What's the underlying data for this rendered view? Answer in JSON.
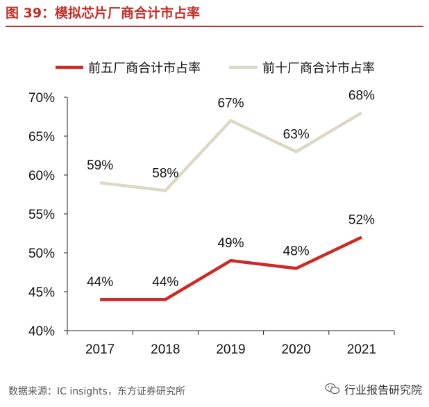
{
  "title": "图 39：模拟芯片厂商合计市占率",
  "source": "数据来源：IC insights，东方证券研究所",
  "watermark": "行业报告研究院",
  "watermark_icon": "wechat-icon",
  "colors": {
    "title": "#c0302b",
    "series1": "#cc2a24",
    "series2": "#ddd8c6"
  },
  "chart_data": {
    "type": "line",
    "title": "模拟芯片厂商合计市占率",
    "xlabel": "",
    "ylabel": "",
    "categories": [
      "2017",
      "2018",
      "2019",
      "2020",
      "2021"
    ],
    "ylim": [
      40,
      70
    ],
    "yticks": [
      40,
      45,
      50,
      55,
      60,
      65,
      70
    ],
    "ytick_labels": [
      "40%",
      "45%",
      "50%",
      "55%",
      "60%",
      "65%",
      "70%"
    ],
    "legend_position": "top",
    "grid": false,
    "series": [
      {
        "name": "前五厂商合计市占率",
        "values": [
          44,
          44,
          49,
          48,
          52
        ],
        "labels": [
          "44%",
          "44%",
          "49%",
          "48%",
          "52%"
        ],
        "color": "#cc2a24"
      },
      {
        "name": "前十厂商合计市占率",
        "values": [
          59,
          58,
          67,
          63,
          68
        ],
        "labels": [
          "59%",
          "58%",
          "67%",
          "63%",
          "68%"
        ],
        "color": "#ddd8c6"
      }
    ]
  }
}
